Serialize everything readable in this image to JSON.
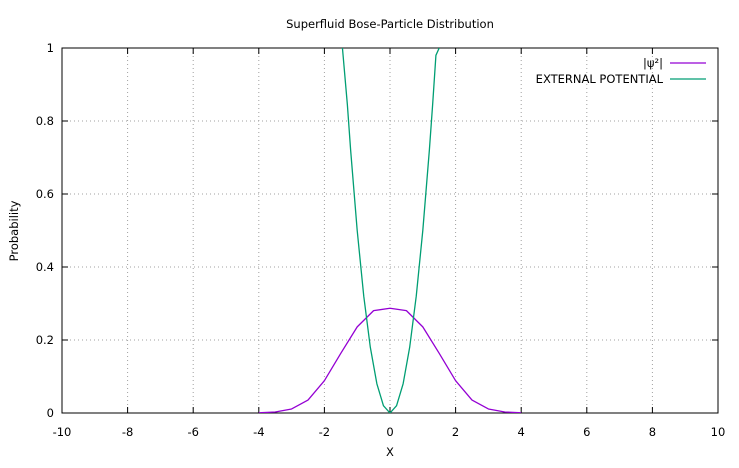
{
  "chart_data": {
    "type": "line",
    "title": "Superfluid Bose-Particle Distribution",
    "xlabel": "X",
    "ylabel": "Probability",
    "xlim": [
      -10,
      10
    ],
    "ylim": [
      0,
      1
    ],
    "x_ticks": [
      -10,
      -8,
      -6,
      -4,
      -2,
      0,
      2,
      4,
      6,
      8,
      10
    ],
    "y_ticks": [
      0,
      0.2,
      0.4,
      0.6,
      0.8,
      1
    ],
    "grid": true,
    "legend_position": "top-right",
    "series": [
      {
        "name": "|ψ²|",
        "color": "#9400d3",
        "x": [
          -4,
          -3.5,
          -3,
          -2.5,
          -2,
          -1.5,
          -1,
          -0.5,
          0,
          0.5,
          1,
          1.5,
          2,
          2.5,
          3,
          3.5,
          4
        ],
        "y": [
          0.0006,
          0.0028,
          0.011,
          0.0355,
          0.0885,
          0.1635,
          0.236,
          0.2805,
          0.287,
          0.2805,
          0.236,
          0.1635,
          0.0885,
          0.0355,
          0.011,
          0.0028,
          0.0006
        ]
      },
      {
        "name": "EXTERNAL POTENTIAL",
        "color": "#009e73",
        "x": [
          -1.45,
          -1.3,
          -1.2,
          -1,
          -0.8,
          -0.6,
          -0.4,
          -0.2,
          0,
          0.2,
          0.4,
          0.6,
          0.8,
          1,
          1.2,
          1.3,
          1.4,
          1.5
        ],
        "y": [
          1.0,
          0.845,
          0.72,
          0.5,
          0.32,
          0.18,
          0.08,
          0.02,
          0,
          0.02,
          0.08,
          0.18,
          0.32,
          0.5,
          0.72,
          0.845,
          0.98,
          1.0
        ]
      }
    ]
  }
}
